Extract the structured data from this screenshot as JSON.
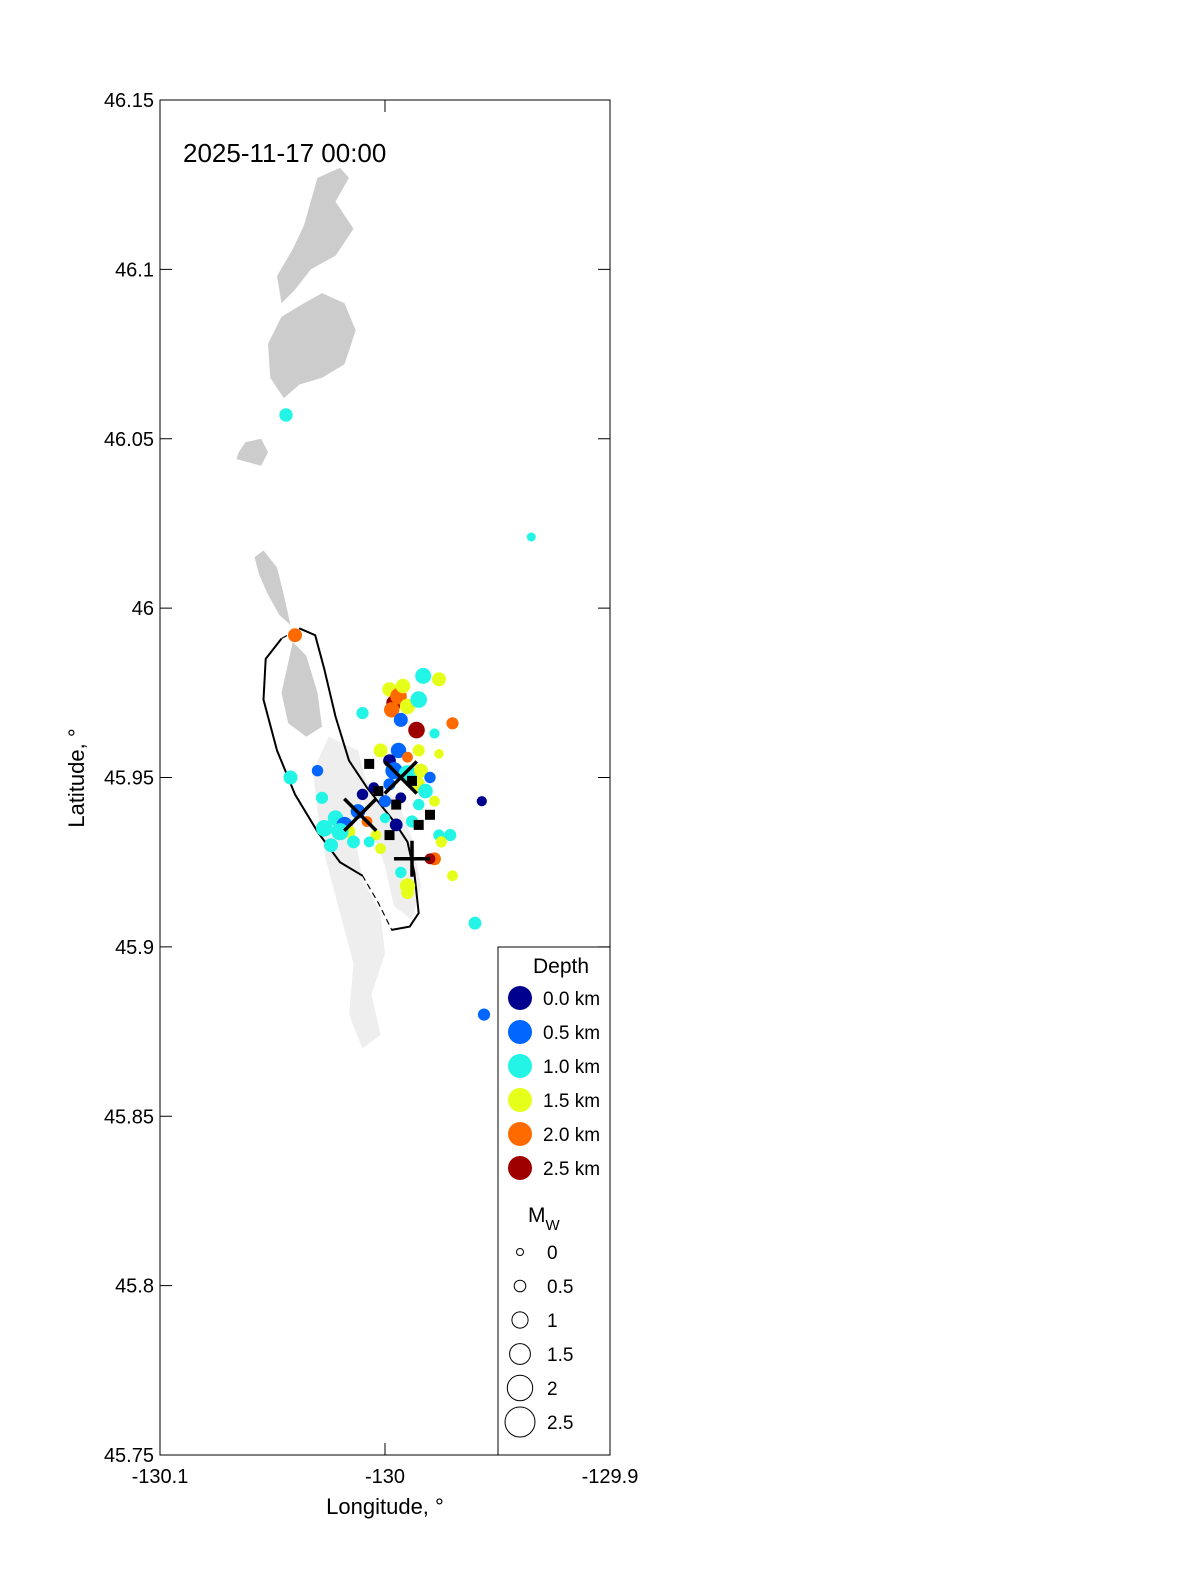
{
  "chart_data": {
    "type": "scatter",
    "timestamp": "2025-11-17 00:00",
    "xlabel": "Longitude, °",
    "ylabel": "Latitude, °",
    "xlim": [
      -130.1,
      -129.9
    ],
    "ylim": [
      45.75,
      46.15
    ],
    "x_ticks": [
      -130.1,
      -130,
      -129.9
    ],
    "x_tick_labels": [
      "-130.1",
      "-130",
      "-129.9"
    ],
    "y_ticks": [
      45.75,
      45.8,
      45.85,
      45.9,
      45.95,
      46.0,
      46.05,
      46.1,
      46.15
    ],
    "y_tick_labels": [
      "45.75",
      "45.8",
      "45.85",
      "45.9",
      "45.95",
      "46",
      "46.05",
      "46.1",
      "46.15"
    ],
    "grid": false,
    "legend_position": "bottom-right",
    "legend_depth": {
      "title": "Depth",
      "entries": [
        {
          "label": "0.0 km",
          "depth": 0.0,
          "color": "#00008f"
        },
        {
          "label": "0.5 km",
          "depth": 0.5,
          "color": "#0066ff"
        },
        {
          "label": "1.0 km",
          "depth": 1.0,
          "color": "#22f5e6"
        },
        {
          "label": "1.5 km",
          "depth": 1.5,
          "color": "#e6ff1a"
        },
        {
          "label": "2.0 km",
          "depth": 2.0,
          "color": "#ff6a00"
        },
        {
          "label": "2.5 km",
          "depth": 2.5,
          "color": "#9e0000"
        }
      ]
    },
    "legend_mag": {
      "title_main": "M",
      "title_sub": "W",
      "entries": [
        {
          "label": "0",
          "mag": 0
        },
        {
          "label": "0.5",
          "mag": 0.5
        },
        {
          "label": "1",
          "mag": 1
        },
        {
          "label": "1.5",
          "mag": 1.5
        },
        {
          "label": "2",
          "mag": 2
        },
        {
          "label": "2.5",
          "mag": 2.5
        }
      ]
    },
    "land_color": "#cccccc",
    "land_light_color": "#eeeeee",
    "land_dark": [
      [
        [
          -130.03,
          46.127
        ],
        [
          -130.02,
          46.13
        ],
        [
          -130.016,
          46.127
        ],
        [
          -130.022,
          46.12
        ],
        [
          -130.014,
          46.112
        ],
        [
          -130.022,
          46.104
        ],
        [
          -130.033,
          46.1
        ],
        [
          -130.04,
          46.094
        ],
        [
          -130.046,
          46.09
        ],
        [
          -130.048,
          46.098
        ],
        [
          -130.041,
          46.106
        ],
        [
          -130.036,
          46.113
        ]
      ],
      [
        [
          -130.028,
          46.093
        ],
        [
          -130.018,
          46.09
        ],
        [
          -130.013,
          46.082
        ],
        [
          -130.018,
          46.072
        ],
        [
          -130.028,
          46.068
        ],
        [
          -130.038,
          46.066
        ],
        [
          -130.045,
          46.062
        ],
        [
          -130.051,
          46.068
        ],
        [
          -130.052,
          46.078
        ],
        [
          -130.046,
          46.086
        ],
        [
          -130.036,
          46.09
        ]
      ],
      [
        [
          -130.065,
          46.046
        ],
        [
          -130.062,
          46.049
        ],
        [
          -130.055,
          46.05
        ],
        [
          -130.052,
          46.046
        ],
        [
          -130.055,
          46.042
        ],
        [
          -130.066,
          46.044
        ]
      ],
      [
        [
          -130.058,
          46.015
        ],
        [
          -130.054,
          46.017
        ],
        [
          -130.048,
          46.012
        ],
        [
          -130.045,
          46.004
        ],
        [
          -130.042,
          45.995
        ],
        [
          -130.047,
          45.998
        ],
        [
          -130.052,
          46.004
        ],
        [
          -130.056,
          46.01
        ]
      ],
      [
        [
          -130.041,
          45.99
        ],
        [
          -130.035,
          45.986
        ],
        [
          -130.03,
          45.975
        ],
        [
          -130.028,
          45.965
        ],
        [
          -130.035,
          45.962
        ],
        [
          -130.043,
          45.966
        ],
        [
          -130.046,
          45.975
        ]
      ]
    ],
    "land_light": [
      [
        [
          -130.025,
          45.962
        ],
        [
          -130.012,
          45.958
        ],
        [
          -130.008,
          45.948
        ],
        [
          -130.014,
          45.935
        ],
        [
          -130.01,
          45.92
        ],
        [
          -130.002,
          45.91
        ],
        [
          -130.0,
          45.898
        ],
        [
          -130.006,
          45.886
        ],
        [
          -130.002,
          45.874
        ],
        [
          -130.01,
          45.87
        ],
        [
          -130.016,
          45.88
        ],
        [
          -130.014,
          45.895
        ],
        [
          -130.02,
          45.91
        ],
        [
          -130.026,
          45.925
        ],
        [
          -130.03,
          45.94
        ],
        [
          -130.032,
          45.952
        ]
      ],
      [
        [
          -130.012,
          45.95
        ],
        [
          -129.995,
          45.944
        ],
        [
          -129.988,
          45.932
        ],
        [
          -129.984,
          45.918
        ],
        [
          -129.988,
          45.908
        ],
        [
          -129.996,
          45.912
        ],
        [
          -130.0,
          45.924
        ],
        [
          -130.008,
          45.938
        ]
      ]
    ],
    "caldera_outline": [
      [
        -130.038,
        45.994
      ],
      [
        -130.031,
        45.992
      ],
      [
        -130.027,
        45.982
      ],
      [
        -130.022,
        45.968
      ],
      [
        -130.016,
        45.955
      ],
      [
        -130.008,
        45.947
      ],
      [
        -130.002,
        45.942
      ],
      [
        -129.996,
        45.937
      ],
      [
        -129.99,
        45.931
      ],
      [
        -129.987,
        45.922
      ],
      [
        -129.985,
        45.91
      ],
      [
        -129.989,
        45.906
      ],
      [
        -129.997,
        45.905
      ],
      [
        -130.003,
        45.913
      ],
      [
        -130.01,
        45.921
      ],
      [
        -130.02,
        45.925
      ],
      [
        -130.03,
        45.934
      ],
      [
        -130.04,
        45.945
      ],
      [
        -130.048,
        45.958
      ],
      [
        -130.054,
        45.973
      ],
      [
        -130.053,
        45.985
      ],
      [
        -130.046,
        45.991
      ]
    ],
    "caldera_solid_segments": [
      [
        0,
        12
      ],
      [
        14,
        22
      ]
    ],
    "cross_markers": [
      {
        "lon": -130.011,
        "lat": 45.939,
        "style": "x"
      },
      {
        "lon": -129.993,
        "lat": 45.95,
        "style": "x"
      },
      {
        "lon": -129.988,
        "lat": 45.926,
        "style": "plus"
      }
    ],
    "square_markers": [
      [
        -130.007,
        45.954
      ],
      [
        -130.003,
        45.946
      ],
      [
        -129.995,
        45.942
      ],
      [
        -129.988,
        45.949
      ],
      [
        -129.98,
        45.939
      ],
      [
        -129.985,
        45.936
      ],
      [
        -129.998,
        45.933
      ]
    ],
    "events": [
      [
        -130.044,
        46.057,
        1.0,
        1.0
      ],
      [
        -130.04,
        45.992,
        2.0,
        1.1
      ],
      [
        -129.935,
        46.021,
        1.0,
        0.3
      ],
      [
        -129.956,
        45.88,
        0.5,
        0.8
      ],
      [
        -129.96,
        45.907,
        1.0,
        0.9
      ],
      [
        -130.042,
        45.95,
        1.0,
        1.1
      ],
      [
        -130.03,
        45.952,
        0.5,
        0.7
      ],
      [
        -130.028,
        45.944,
        1.0,
        0.8
      ],
      [
        -130.022,
        45.938,
        1.0,
        1.3
      ],
      [
        -130.018,
        45.936,
        0.5,
        1.4
      ],
      [
        -130.016,
        45.934,
        1.5,
        0.9
      ],
      [
        -130.02,
        45.934,
        1.0,
        1.6
      ],
      [
        -130.014,
        45.931,
        1.0,
        0.9
      ],
      [
        -130.012,
        45.94,
        0.5,
        1.2
      ],
      [
        -130.01,
        45.945,
        0.0,
        0.7
      ],
      [
        -130.008,
        45.937,
        2.0,
        0.6
      ],
      [
        -130.004,
        45.933,
        1.5,
        0.6
      ],
      [
        -130.0,
        45.938,
        1.0,
        0.5
      ],
      [
        -130.01,
        45.969,
        1.0,
        0.8
      ],
      [
        -129.998,
        45.976,
        1.5,
        1.2
      ],
      [
        -129.996,
        45.972,
        2.5,
        1.3
      ],
      [
        -129.994,
        45.974,
        2.0,
        1.5
      ],
      [
        -129.992,
        45.977,
        1.5,
        1.2
      ],
      [
        -129.99,
        45.971,
        1.5,
        1.3
      ],
      [
        -129.997,
        45.97,
        2.0,
        1.3
      ],
      [
        -129.993,
        45.967,
        0.5,
        1.1
      ],
      [
        -129.985,
        45.973,
        1.0,
        1.5
      ],
      [
        -129.983,
        45.98,
        1.0,
        1.4
      ],
      [
        -129.976,
        45.979,
        1.5,
        1.1
      ],
      [
        -129.97,
        45.966,
        2.0,
        0.8
      ],
      [
        -129.986,
        45.964,
        2.5,
        1.5
      ],
      [
        -129.994,
        45.958,
        0.5,
        1.3
      ],
      [
        -129.998,
        45.955,
        0.0,
        0.9
      ],
      [
        -130.002,
        45.958,
        1.5,
        1.1
      ],
      [
        -129.99,
        45.956,
        2.0,
        0.6
      ],
      [
        -129.985,
        45.958,
        1.5,
        0.8
      ],
      [
        -129.996,
        45.952,
        0.5,
        1.6
      ],
      [
        -129.99,
        45.951,
        1.0,
        1.7
      ],
      [
        -129.986,
        45.948,
        1.5,
        1.5
      ],
      [
        -129.982,
        45.946,
        1.0,
        1.2
      ],
      [
        -129.984,
        45.952,
        1.5,
        1.1
      ],
      [
        -129.978,
        45.963,
        1.0,
        0.5
      ],
      [
        -129.976,
        45.957,
        1.5,
        0.4
      ],
      [
        -129.98,
        45.95,
        0.5,
        0.7
      ],
      [
        -129.957,
        45.943,
        0.0,
        0.5
      ],
      [
        -129.976,
        45.933,
        1.0,
        0.7
      ],
      [
        -129.971,
        45.933,
        1.0,
        0.8
      ],
      [
        -129.975,
        45.931,
        1.5,
        0.7
      ],
      [
        -129.978,
        45.926,
        2.0,
        0.9
      ],
      [
        -129.98,
        45.926,
        2.5,
        0.6
      ],
      [
        -129.97,
        45.921,
        1.5,
        0.6
      ],
      [
        -129.99,
        45.918,
        1.5,
        1.3
      ],
      [
        -129.99,
        45.916,
        1.5,
        0.9
      ],
      [
        -129.993,
        45.922,
        1.0,
        0.7
      ],
      [
        -130.002,
        45.929,
        1.5,
        0.6
      ],
      [
        -130.0,
        45.943,
        0.5,
        0.8
      ],
      [
        -129.995,
        45.936,
        0.0,
        0.9
      ],
      [
        -130.007,
        45.931,
        1.0,
        0.6
      ],
      [
        -130.027,
        45.935,
        1.0,
        1.5
      ],
      [
        -130.024,
        45.93,
        1.0,
        1.1
      ],
      [
        -130.005,
        45.947,
        0.0,
        0.6
      ],
      [
        -129.998,
        45.948,
        0.5,
        0.8
      ],
      [
        -129.993,
        45.944,
        0.0,
        0.6
      ],
      [
        -129.985,
        45.942,
        1.0,
        0.7
      ],
      [
        -129.978,
        45.943,
        1.5,
        0.6
      ],
      [
        -129.988,
        45.937,
        1.0,
        0.8
      ]
    ]
  }
}
